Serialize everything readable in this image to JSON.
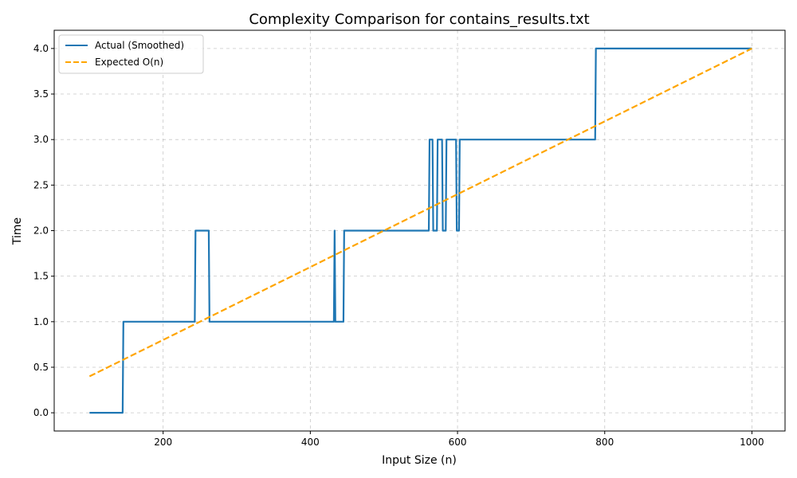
{
  "chart_data": {
    "type": "line",
    "title": "Complexity Comparison for contains_results.txt",
    "xlabel": "Input Size (n)",
    "ylabel": "Time",
    "xlim": [
      52,
      1045
    ],
    "ylim": [
      -0.2,
      4.2
    ],
    "xticks": [
      200,
      400,
      600,
      800,
      1000
    ],
    "xtick_labels": [
      "200",
      "400",
      "600",
      "800",
      "1000"
    ],
    "yticks": [
      0.0,
      0.5,
      1.0,
      1.5,
      2.0,
      2.5,
      3.0,
      3.5,
      4.0
    ],
    "ytick_labels": [
      "0.0",
      "0.5",
      "1.0",
      "1.5",
      "2.0",
      "2.5",
      "3.0",
      "3.5",
      "4.0"
    ],
    "grid": true,
    "legend_position": "top-left",
    "series": [
      {
        "name": "Actual (Smoothed)",
        "color": "#1f77b4",
        "style": "solid",
        "x": [
          100,
          145,
          146,
          243,
          244,
          262,
          263,
          432,
          433,
          434,
          435,
          445,
          446,
          561,
          562,
          566,
          567,
          572,
          573,
          579,
          580,
          584,
          585,
          598,
          599,
          602,
          603,
          787,
          788,
          1000
        ],
        "y": [
          0,
          0,
          1,
          1,
          2,
          2,
          1,
          1,
          2,
          1,
          1,
          1,
          2,
          2,
          3,
          3,
          2,
          2,
          3,
          3,
          2,
          2,
          3,
          3,
          2,
          2,
          3,
          3,
          4,
          4
        ]
      },
      {
        "name": "Expected O(n)",
        "color": "#ffa500",
        "style": "dashed",
        "x": [
          100,
          1000
        ],
        "y": [
          0.4,
          4.0
        ]
      }
    ]
  }
}
